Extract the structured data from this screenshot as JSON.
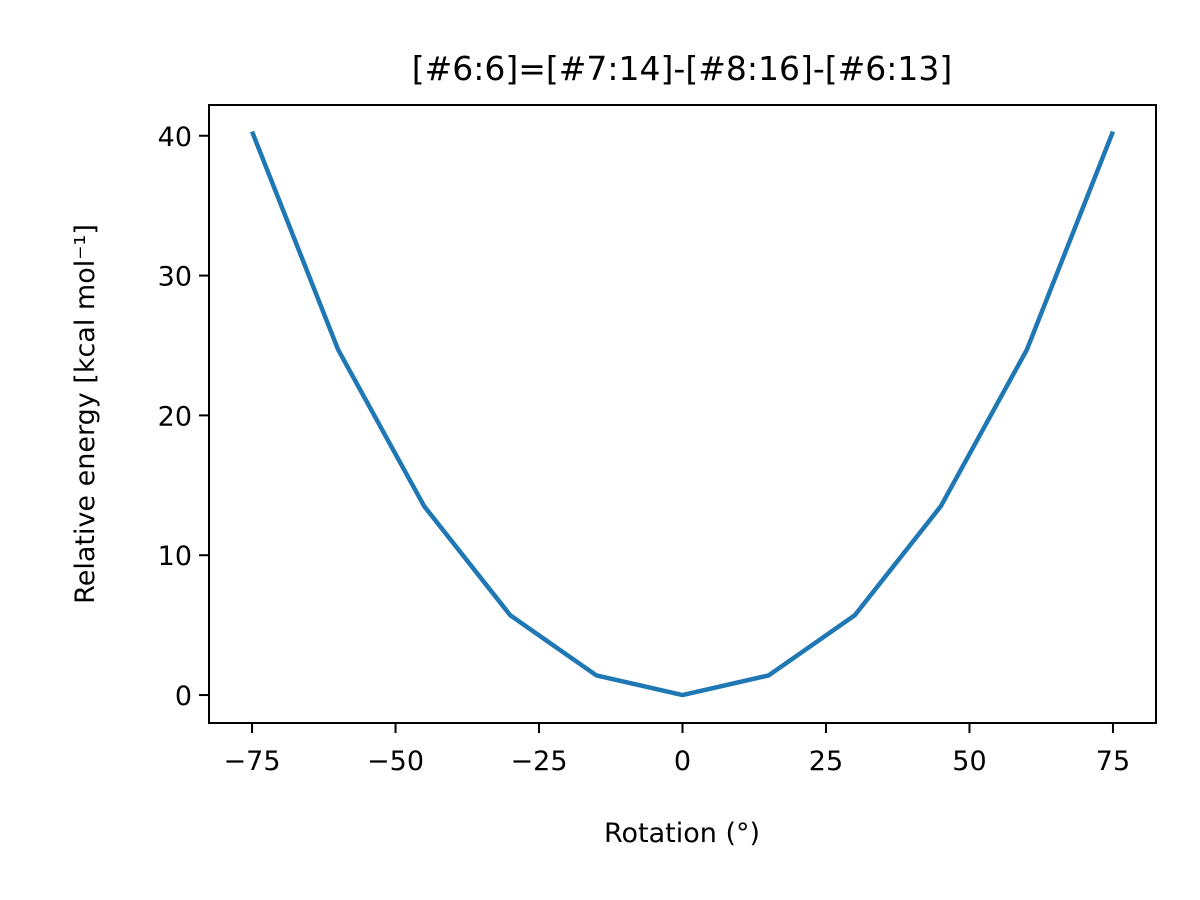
{
  "chart_data": {
    "type": "line",
    "title": "[#6:6]=[#7:14]-[#8:16]-[#6:13]",
    "xlabel": "Rotation (°)",
    "ylabel": "Relative energy [kcal mol⁻¹]",
    "xlim": [
      -82.5,
      82.5
    ],
    "ylim": [
      -2.0,
      42.2
    ],
    "xticks": [
      -75,
      -50,
      -25,
      0,
      25,
      50,
      75
    ],
    "xtick_labels": [
      "−75",
      "−50",
      "−25",
      "0",
      "25",
      "50",
      "75"
    ],
    "yticks": [
      0,
      10,
      20,
      30,
      40
    ],
    "ytick_labels": [
      "0",
      "10",
      "20",
      "30",
      "40"
    ],
    "grid": false,
    "series": [
      {
        "color": "#1f77b4",
        "x": [
          -75,
          -60,
          -45,
          -30,
          -15,
          0,
          15,
          30,
          45,
          60,
          75
        ],
        "y": [
          40.3,
          24.7,
          13.5,
          5.7,
          1.4,
          0.0,
          1.4,
          5.7,
          13.5,
          24.7,
          40.3
        ]
      }
    ]
  }
}
